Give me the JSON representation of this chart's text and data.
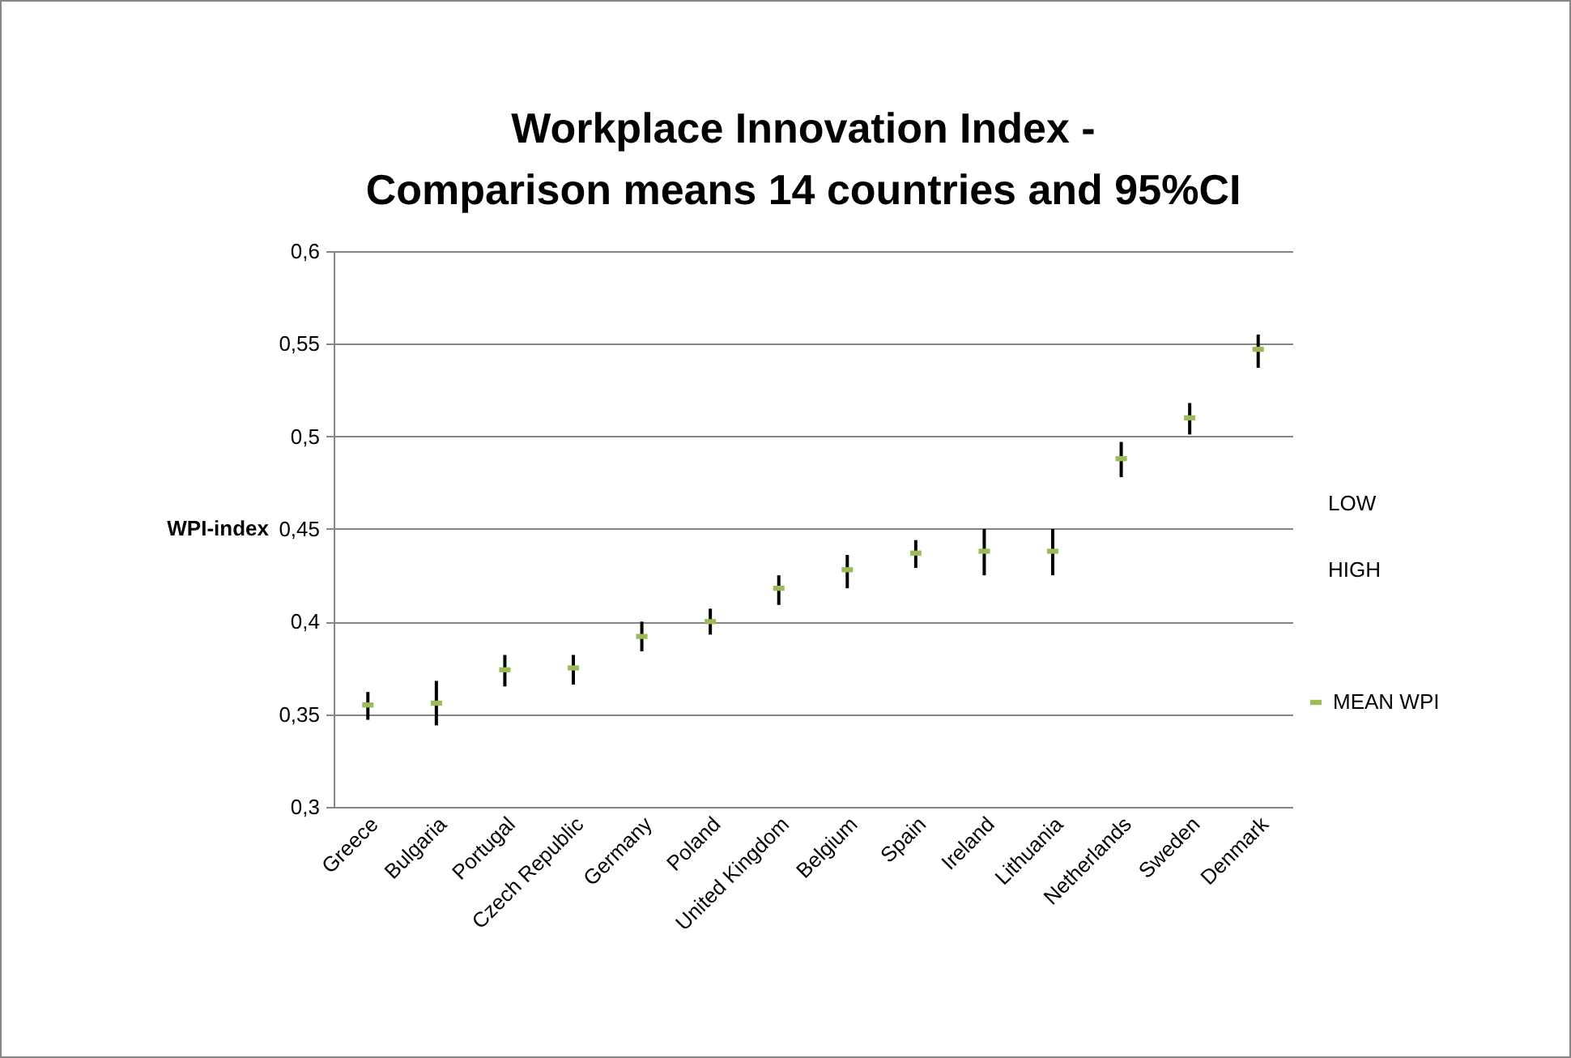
{
  "chart_data": {
    "type": "scatter",
    "title": "Workplace Innovation Index - Comparison means 14 countries and 95%CI",
    "ylabel": "WPI-index",
    "categories": [
      "Greece",
      "Bulgaria",
      "Portugal",
      "Czech Republic",
      "Germany",
      "Poland",
      "United Kingdom",
      "Belgium",
      "Spain",
      "Ireland",
      "Lithuania",
      "Netherlands",
      "Sweden",
      "Denmark"
    ],
    "series": [
      {
        "name": "MEAN WPI",
        "color": "#9bbb59",
        "values": [
          0.355,
          0.356,
          0.374,
          0.375,
          0.392,
          0.4,
          0.418,
          0.428,
          0.437,
          0.438,
          0.438,
          0.488,
          0.51,
          0.547
        ],
        "errors": [
          [
            0.347,
            0.362
          ],
          [
            0.344,
            0.368
          ],
          [
            0.365,
            0.382
          ],
          [
            0.366,
            0.382
          ],
          [
            0.384,
            0.4
          ],
          [
            0.393,
            0.407
          ],
          [
            0.409,
            0.425
          ],
          [
            0.418,
            0.436
          ],
          [
            0.429,
            0.444
          ],
          [
            0.425,
            0.45
          ],
          [
            0.425,
            0.45
          ],
          [
            0.478,
            0.497
          ],
          [
            0.501,
            0.518
          ],
          [
            0.537,
            0.555
          ]
        ]
      }
    ],
    "annotations": [
      "LOW",
      "HIGH"
    ],
    "ylim": [
      0.3,
      0.6
    ],
    "yticks": [
      {
        "value": 0.3,
        "label": "0,3"
      },
      {
        "value": 0.35,
        "label": "0,35"
      },
      {
        "value": 0.4,
        "label": "0,4"
      },
      {
        "value": 0.45,
        "label": "0,45"
      },
      {
        "value": 0.5,
        "label": "0,5"
      },
      {
        "value": 0.55,
        "label": "0,55"
      },
      {
        "value": 0.6,
        "label": "0,6"
      }
    ],
    "grid": "y",
    "legend": "right"
  }
}
